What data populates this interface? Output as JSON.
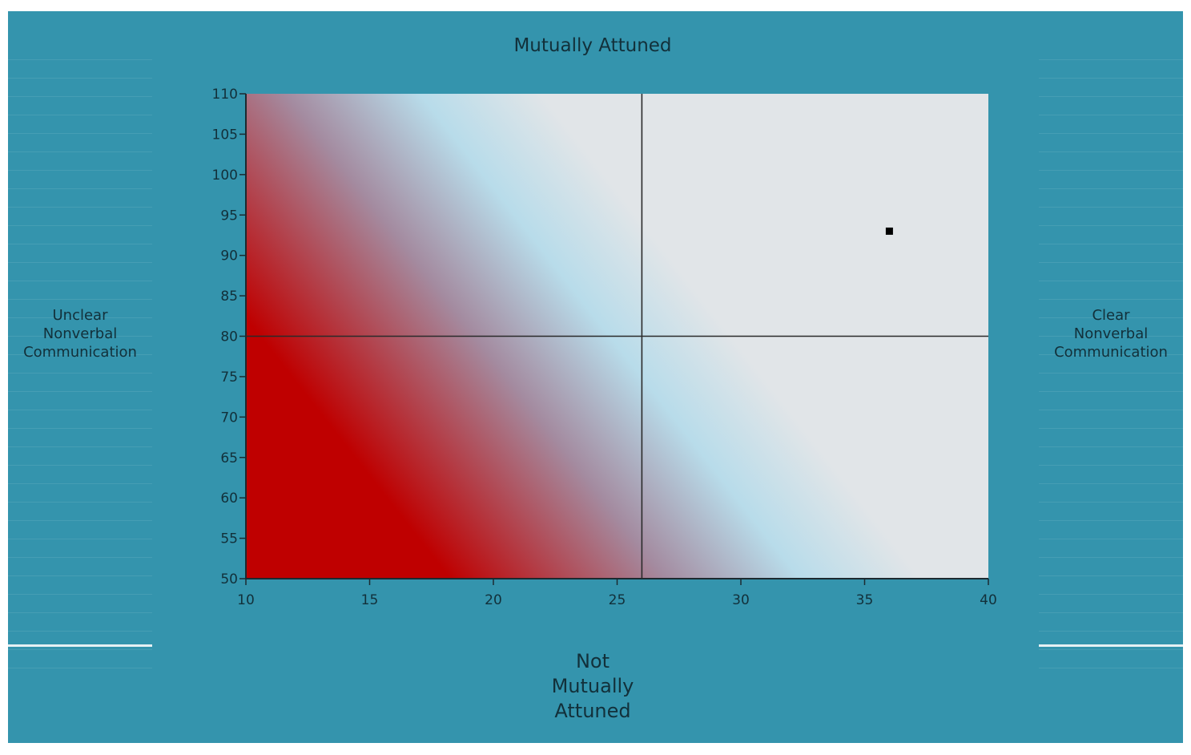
{
  "chart_data": {
    "type": "scatter",
    "title": "Mutually Attuned",
    "xlabel": "Not\nMutually\nAttuned",
    "ylabel_left": "Unclear\nNonverbal\nCommunication",
    "ylabel_right": "Clear\nNonverbal\nCommunication",
    "xlim": [
      10,
      40
    ],
    "ylim": [
      50,
      110
    ],
    "xticks": [
      10,
      15,
      20,
      25,
      30,
      35,
      40
    ],
    "yticks": [
      50,
      55,
      60,
      65,
      70,
      75,
      80,
      85,
      90,
      95,
      100,
      105,
      110
    ],
    "quadrant_lines": {
      "x": 26,
      "y": 80
    },
    "points": [
      {
        "x": 36,
        "y": 93
      }
    ],
    "background_gradient": "red in the low-low corner fading through light blue to light grey in the high-high corner"
  },
  "colors": {
    "background": "#3494ad",
    "gradient_red": "#bf0000",
    "gradient_mauve": "#a48ba0",
    "gradient_blue": "#b8dcea",
    "gradient_grey": "#e1e5e8",
    "text": "#12303a"
  }
}
